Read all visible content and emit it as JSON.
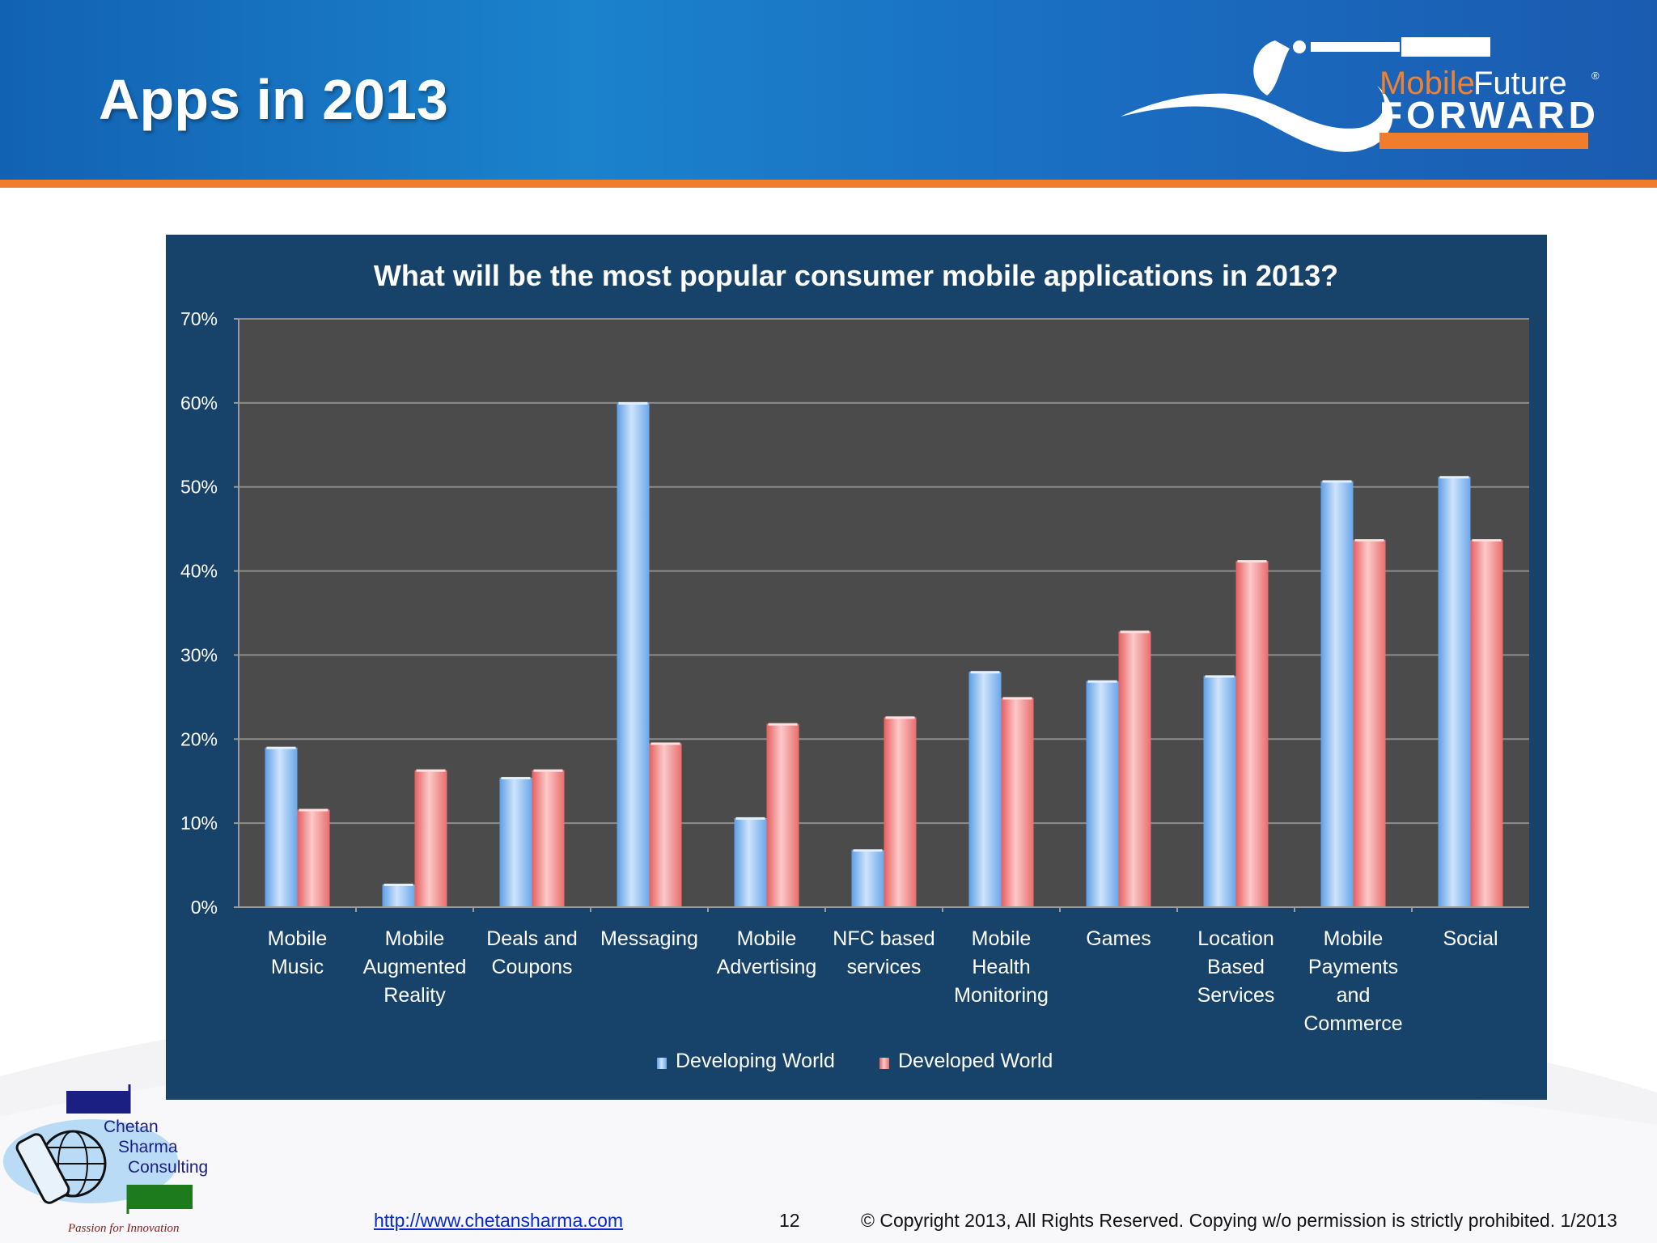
{
  "slide": {
    "title": "Apps in 2013",
    "header_colors": {
      "blue": "#1a7ac6",
      "orange": "#ef7d2c"
    }
  },
  "logo": {
    "brand_line1_a": "Mobile",
    "brand_line1_b": "Future",
    "registered": "®",
    "brand_line2": "FORWARD",
    "icon": "telescope-swoosh-icon"
  },
  "footer": {
    "url": "http://www.chetansharma.com",
    "page_number": "12",
    "copyright": "© Copyright 2013, All Rights Reserved. Copying w/o permission is strictly prohibited. 1/2013"
  },
  "consulting_logo": {
    "line1": "Chetan",
    "line2": "Sharma",
    "line3": "Consulting",
    "tagline": "Passion for Innovation",
    "icon": "phone-globe-icon"
  },
  "chart_data": {
    "type": "bar",
    "title": "What will be the most popular consumer mobile applications in 2013?",
    "xlabel": "",
    "ylabel": "",
    "ylim": [
      0,
      70
    ],
    "y_ticks": [
      0,
      10,
      20,
      30,
      40,
      50,
      60,
      70
    ],
    "y_tick_labels": [
      "0%",
      "10%",
      "20%",
      "30%",
      "40%",
      "50%",
      "60%",
      "70%"
    ],
    "grid": true,
    "legend_position": "bottom",
    "categories": [
      [
        "Mobile",
        "Music"
      ],
      [
        "Mobile",
        "Augmented",
        "Reality"
      ],
      [
        "Deals and",
        "Coupons"
      ],
      [
        "Messaging"
      ],
      [
        "Mobile",
        "Advertising"
      ],
      [
        "NFC based",
        "services"
      ],
      [
        "Mobile",
        "Health",
        "Monitoring"
      ],
      [
        "Games"
      ],
      [
        "Location",
        "Based",
        "Services"
      ],
      [
        "Mobile",
        "Payments",
        "and",
        "Commerce"
      ],
      [
        "Social"
      ]
    ],
    "series": [
      {
        "name": "Developing World",
        "color": "#8ec0f2",
        "values": [
          19,
          2.7,
          15.4,
          60,
          10.6,
          6.8,
          28,
          26.9,
          27.5,
          50.7,
          51.2
        ]
      },
      {
        "name": "Developed World",
        "color": "#f28e8e",
        "values": [
          11.6,
          16.3,
          16.3,
          19.5,
          21.8,
          22.6,
          24.9,
          32.8,
          41.2,
          43.7,
          43.7
        ]
      }
    ]
  }
}
